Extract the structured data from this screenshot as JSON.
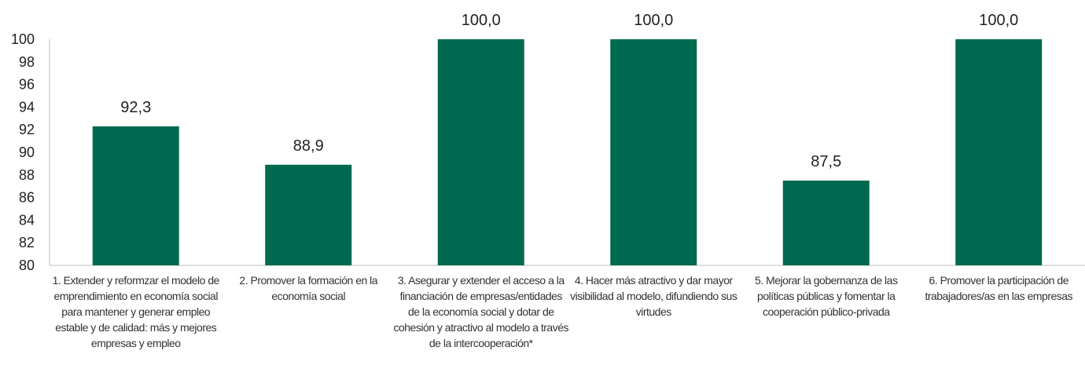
{
  "chart_data": {
    "type": "bar",
    "title": "",
    "xlabel": "",
    "ylabel": "",
    "categories": [
      "1. Extender y reformzar el modelo de emprendimiento en economía social para mantener y generar empleo estable y de calidad: más y mejores empresas y empleo",
      "2. Promover la formación en la economía social",
      "3. Asegurar y extender el acceso a la financiación de empresas/entidades de la economía social y dotar de cohesión y atractivo al modelo a través de la intercooperación*",
      "4. Hacer más atractivo y dar mayor visibilidad al modelo, difundiendo sus virtudes",
      "5. Mejorar la gobernanza de las políticas públicas y fomentar la cooperación público-privada",
      "6. Promover la participación de trabajadores/as en las empresas"
    ],
    "values": [
      92.3,
      88.9,
      100.0,
      100.0,
      87.5,
      100.0
    ],
    "data_labels": [
      "92,3",
      "88,9",
      "100,0",
      "100,0",
      "87,5",
      "100,0"
    ],
    "ylim": [
      80,
      100
    ],
    "yticks": [
      "80",
      "82",
      "84",
      "86",
      "88",
      "90",
      "92",
      "94",
      "96",
      "98",
      "100"
    ],
    "grid": false,
    "bar_color": "#006a50"
  }
}
